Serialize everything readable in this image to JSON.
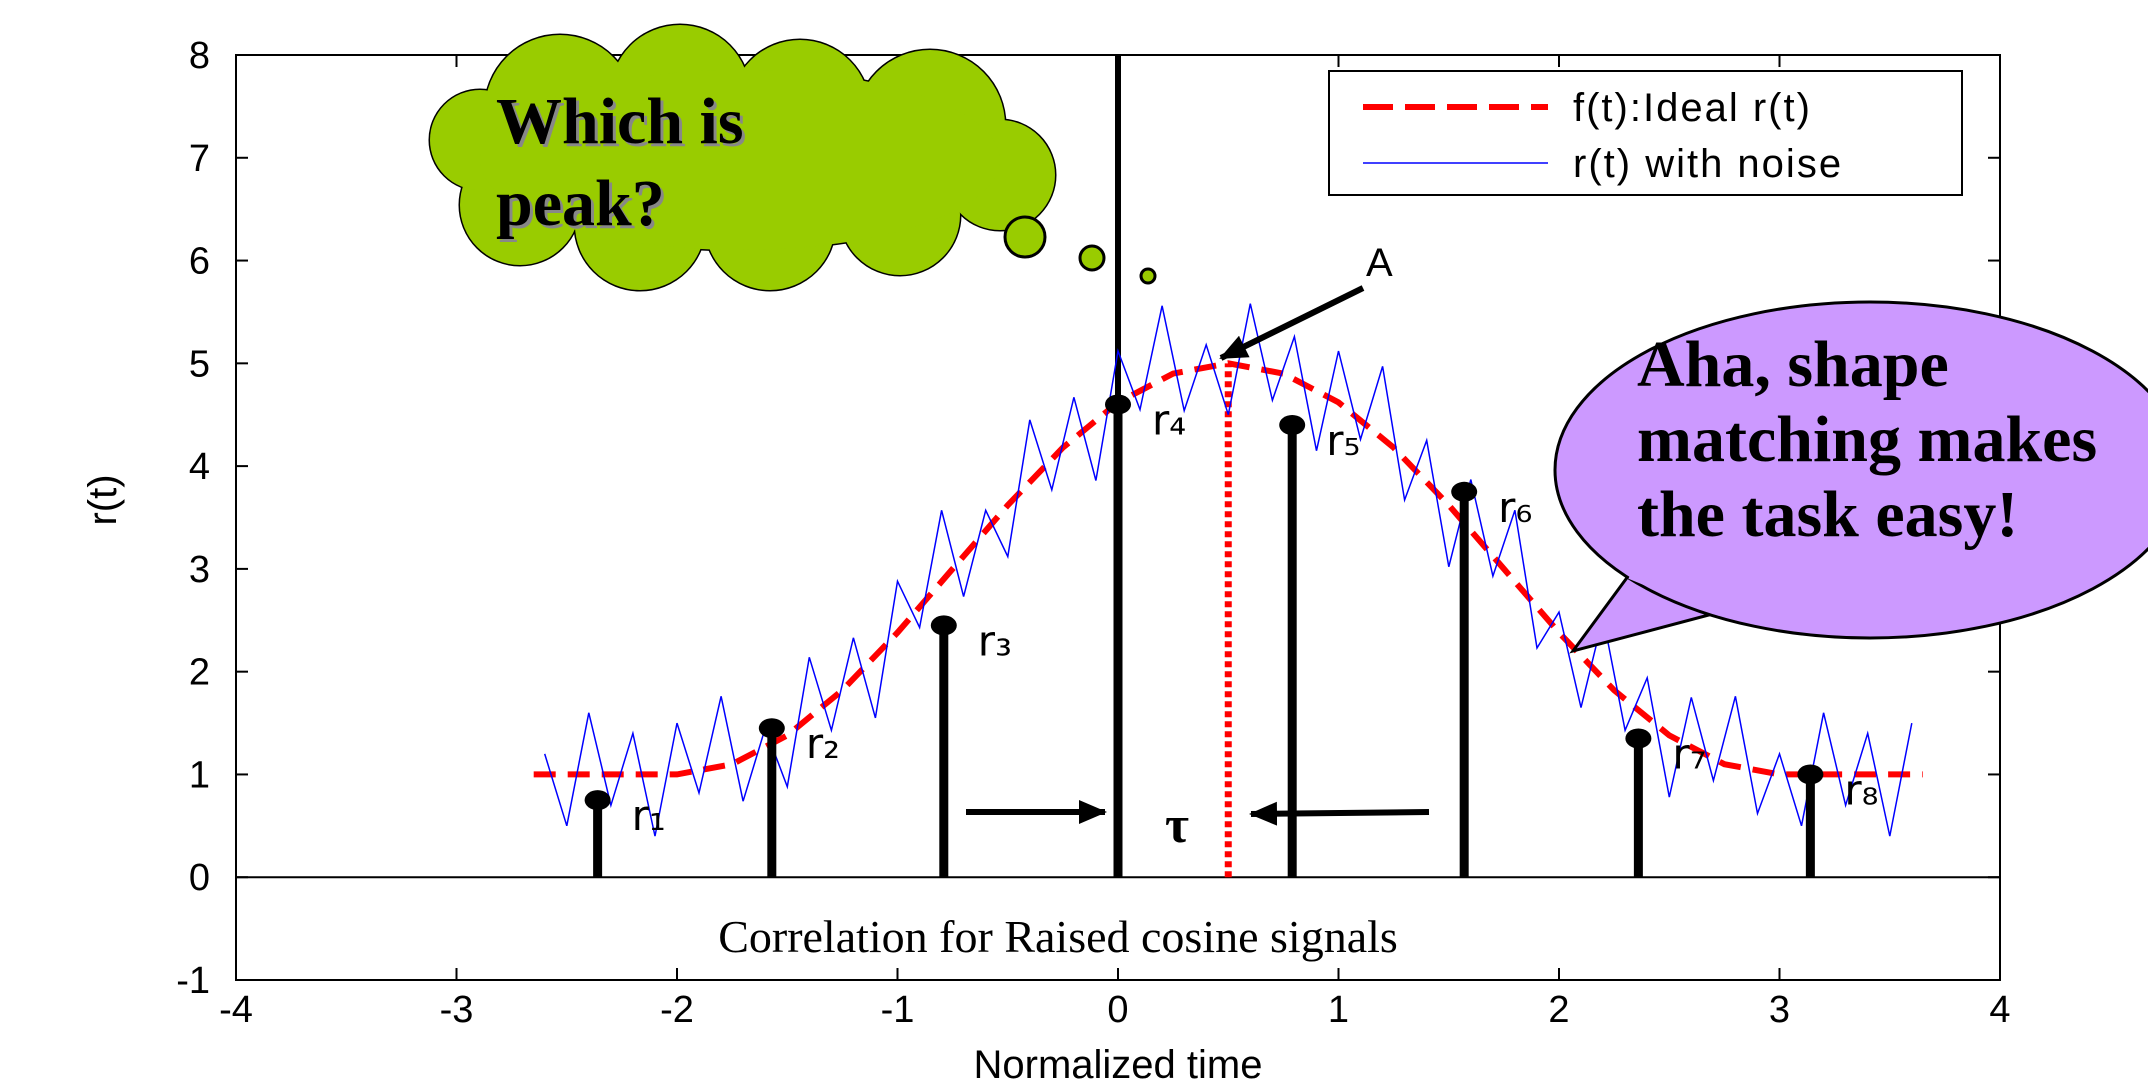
{
  "chart_data": {
    "type": "line",
    "xlabel": "Normalized time",
    "ylabel": "r(t)",
    "caption": "Correlation for Raised cosine signals",
    "xlim": [
      -4,
      4
    ],
    "ylim": [
      -1,
      8
    ],
    "xticks": [
      -4,
      -3,
      -2,
      -1,
      0,
      1,
      2,
      3,
      4
    ],
    "yticks": [
      -1,
      0,
      1,
      2,
      3,
      4,
      5,
      6,
      7,
      8
    ],
    "grid": false,
    "zero_line": true,
    "legend": "upper right",
    "series": [
      {
        "name": "f(t):Ideal r(t)",
        "kind": "line",
        "color": "#ff0000",
        "dashed": true,
        "x": [
          -2.65,
          -2,
          -1.75,
          -1.5,
          -1.25,
          -1,
          -0.75,
          -0.5,
          -0.25,
          0,
          0.25,
          0.5,
          0.75,
          1,
          1.25,
          1.5,
          1.75,
          2,
          2.25,
          2.5,
          2.75,
          3,
          3.65
        ],
        "values": [
          1,
          1,
          1.1,
          1.38,
          1.82,
          2.38,
          3,
          3.62,
          4.18,
          4.62,
          4.9,
          5,
          4.9,
          4.62,
          4.18,
          3.62,
          3,
          2.38,
          1.82,
          1.38,
          1.1,
          1,
          1
        ]
      },
      {
        "name": "r(t) with noise",
        "kind": "line",
        "color": "#0000ff",
        "dashed": false,
        "x": [
          -2.6,
          -2.5,
          -2.4,
          -2.3,
          -2.2,
          -2.1,
          -2,
          -1.9,
          -1.8,
          -1.7,
          -1.6,
          -1.5,
          -1.4,
          -1.3,
          -1.2,
          -1.1,
          -1,
          -0.9,
          -0.8,
          -0.7,
          -0.6,
          -0.5,
          -0.4,
          -0.3,
          -0.2,
          -0.1,
          0,
          0.1,
          0.2,
          0.3,
          0.4,
          0.5,
          0.6,
          0.7,
          0.8,
          0.9,
          1,
          1.1,
          1.2,
          1.3,
          1.4,
          1.5,
          1.6,
          1.7,
          1.8,
          1.9,
          2,
          2.1,
          2.2,
          2.3,
          2.4,
          2.5,
          2.6,
          2.7,
          2.8,
          2.9,
          3,
          3.1,
          3.2,
          3.3,
          3.4,
          3.5,
          3.6
        ],
        "values": [
          1.2,
          0.5,
          1.6,
          0.7,
          1.4,
          0.4,
          1.5,
          0.82,
          1.76,
          0.74,
          1.45,
          0.88,
          2.14,
          1.43,
          2.33,
          1.55,
          2.88,
          2.43,
          3.57,
          2.73,
          3.57,
          3.12,
          4.45,
          3.77,
          4.67,
          3.86,
          5.12,
          4.55,
          5.56,
          4.54,
          5.18,
          4.5,
          5.58,
          4.64,
          5.26,
          4.15,
          5.12,
          4.26,
          4.97,
          3.67,
          4.25,
          3.02,
          3.87,
          2.93,
          3.57,
          2.23,
          2.58,
          1.65,
          2.53,
          1.43,
          1.94,
          0.78,
          1.75,
          0.94,
          1.76,
          0.62,
          1.2,
          0.5,
          1.6,
          0.7,
          1.4,
          0.4,
          1.5
        ]
      },
      {
        "kind": "stem",
        "color": "#000000",
        "x": [
          -2.36,
          -1.57,
          -0.79,
          0,
          0.79,
          1.57,
          2.36,
          3.14
        ],
        "values": [
          0.75,
          1.45,
          2.45,
          4.6,
          4.4,
          3.75,
          1.35,
          1.0
        ],
        "labels": [
          "r₁",
          "r₂",
          "r₃",
          "r₄",
          "r₅",
          "r₆",
          "r₇",
          "r₈"
        ]
      }
    ],
    "reference_lines": [
      {
        "x": 0,
        "from": 0,
        "to": 8,
        "color": "#000000",
        "dashed": false
      },
      {
        "x": 0.5,
        "from": 0,
        "to": 5,
        "color": "#ff0000",
        "dashed": true
      }
    ],
    "annotations": {
      "peak": "A",
      "delay": "τ",
      "question": [
        "Which is",
        "peak?"
      ],
      "answer": [
        "Aha, shape",
        "matching makes",
        "the task easy!"
      ]
    }
  }
}
